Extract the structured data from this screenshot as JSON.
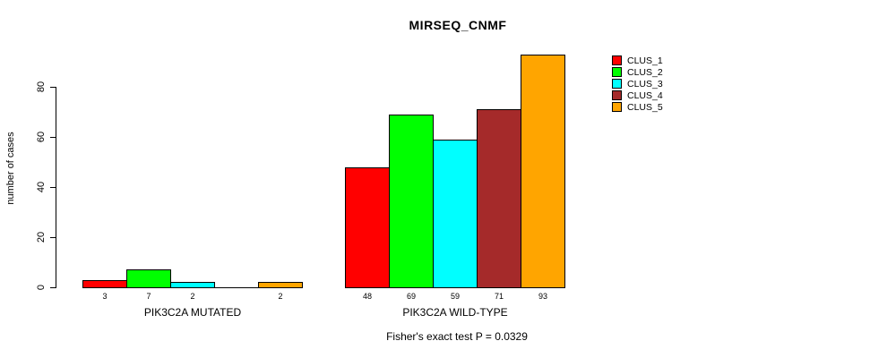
{
  "title": "MIRSEQ_CNMF",
  "footer": "Fisher's exact test P = 0.0329",
  "chart_data": {
    "type": "bar",
    "title": "MIRSEQ_CNMF",
    "xlabel": "",
    "ylabel": "number of cases",
    "yticks": [
      0,
      20,
      40,
      60,
      80
    ],
    "ylim": [
      0,
      93
    ],
    "grid": false,
    "legend_position": "right",
    "annotation": "Fisher's exact test P = 0.0329",
    "series": [
      {
        "name": "CLUS_1",
        "color": "#FF0000"
      },
      {
        "name": "CLUS_2",
        "color": "#00FF00"
      },
      {
        "name": "CLUS_3",
        "color": "#00FFFF"
      },
      {
        "name": "CLUS_4",
        "color": "#A52A2A"
      },
      {
        "name": "CLUS_5",
        "color": "#FFA500"
      }
    ],
    "groups": [
      {
        "label": "PIK3C2A MUTATED",
        "values": [
          3,
          7,
          2,
          0,
          2
        ],
        "bar_labels": [
          "3",
          "7",
          "2",
          "",
          "2"
        ]
      },
      {
        "label": "PIK3C2A WILD-TYPE",
        "values": [
          48,
          69,
          59,
          71,
          93
        ],
        "bar_labels": [
          "48",
          "69",
          "59",
          "71",
          "93"
        ]
      }
    ]
  }
}
